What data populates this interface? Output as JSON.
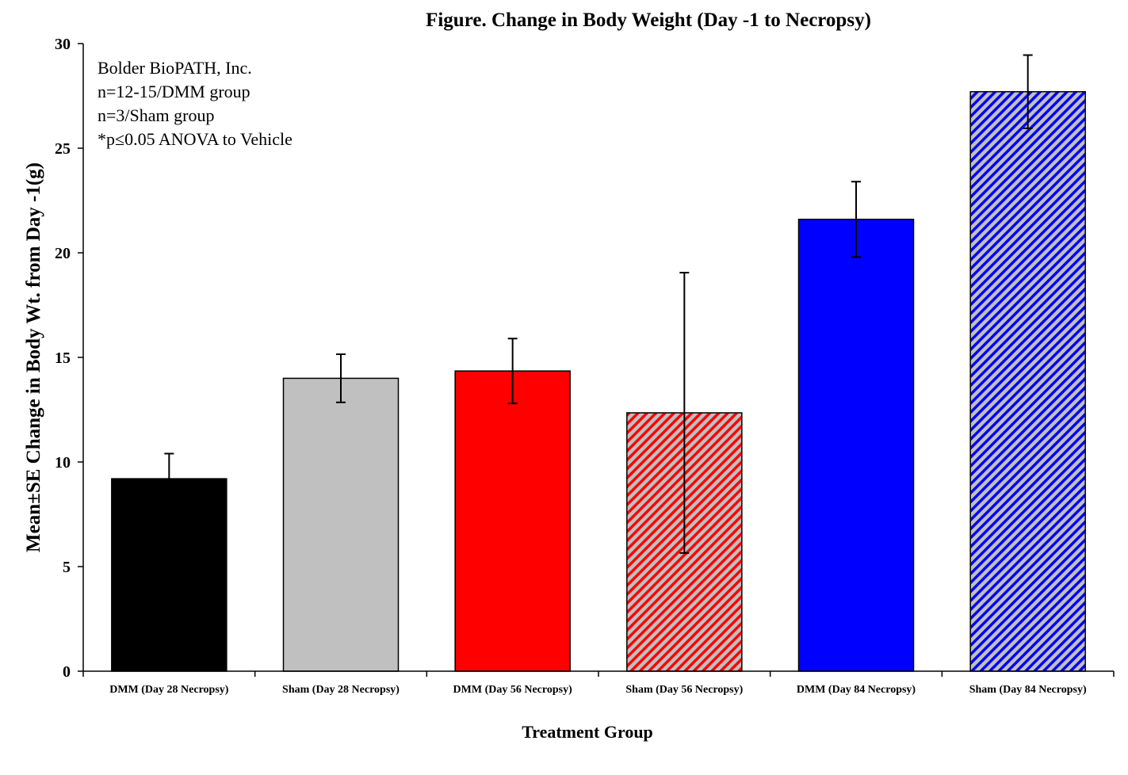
{
  "chart_data": {
    "type": "bar",
    "title": "Figure.  Change in Body Weight (Day -1 to Necropsy)",
    "xlabel": "Treatment Group",
    "ylabel": "Mean±SE Change in Body Wt. from Day -1(g)",
    "ylim": [
      0,
      30
    ],
    "yticks": [
      0,
      5,
      10,
      15,
      20,
      25,
      30
    ],
    "grid": false,
    "annotations": [
      "Bolder BioPATH, Inc.",
      "n=12-15/DMM group",
      "n=3/Sham group",
      "*p≤0.05 ANOVA to Vehicle"
    ],
    "categories": [
      "DMM (Day 28 Necropsy)",
      "Sham (Day 28 Necropsy)",
      "DMM (Day 56 Necropsy)",
      "Sham (Day 56 Necropsy)",
      "DMM (Day 84 Necropsy)",
      "Sham (Day 84 Necropsy)"
    ],
    "values": [
      9.2,
      14.0,
      14.35,
      12.35,
      21.6,
      27.7
    ],
    "errors": [
      1.2,
      1.15,
      1.55,
      6.7,
      1.8,
      1.75
    ],
    "fills": [
      {
        "color": "#000000",
        "hatch": false
      },
      {
        "color": "#c0c0c0",
        "hatch": false
      },
      {
        "color": "#ff0000",
        "hatch": false
      },
      {
        "color": "#ff0000",
        "hatch": true,
        "background": "#c0c0c0"
      },
      {
        "color": "#0000ff",
        "hatch": false
      },
      {
        "color": "#0000ff",
        "hatch": true,
        "background": "#c0c0c0"
      }
    ]
  }
}
